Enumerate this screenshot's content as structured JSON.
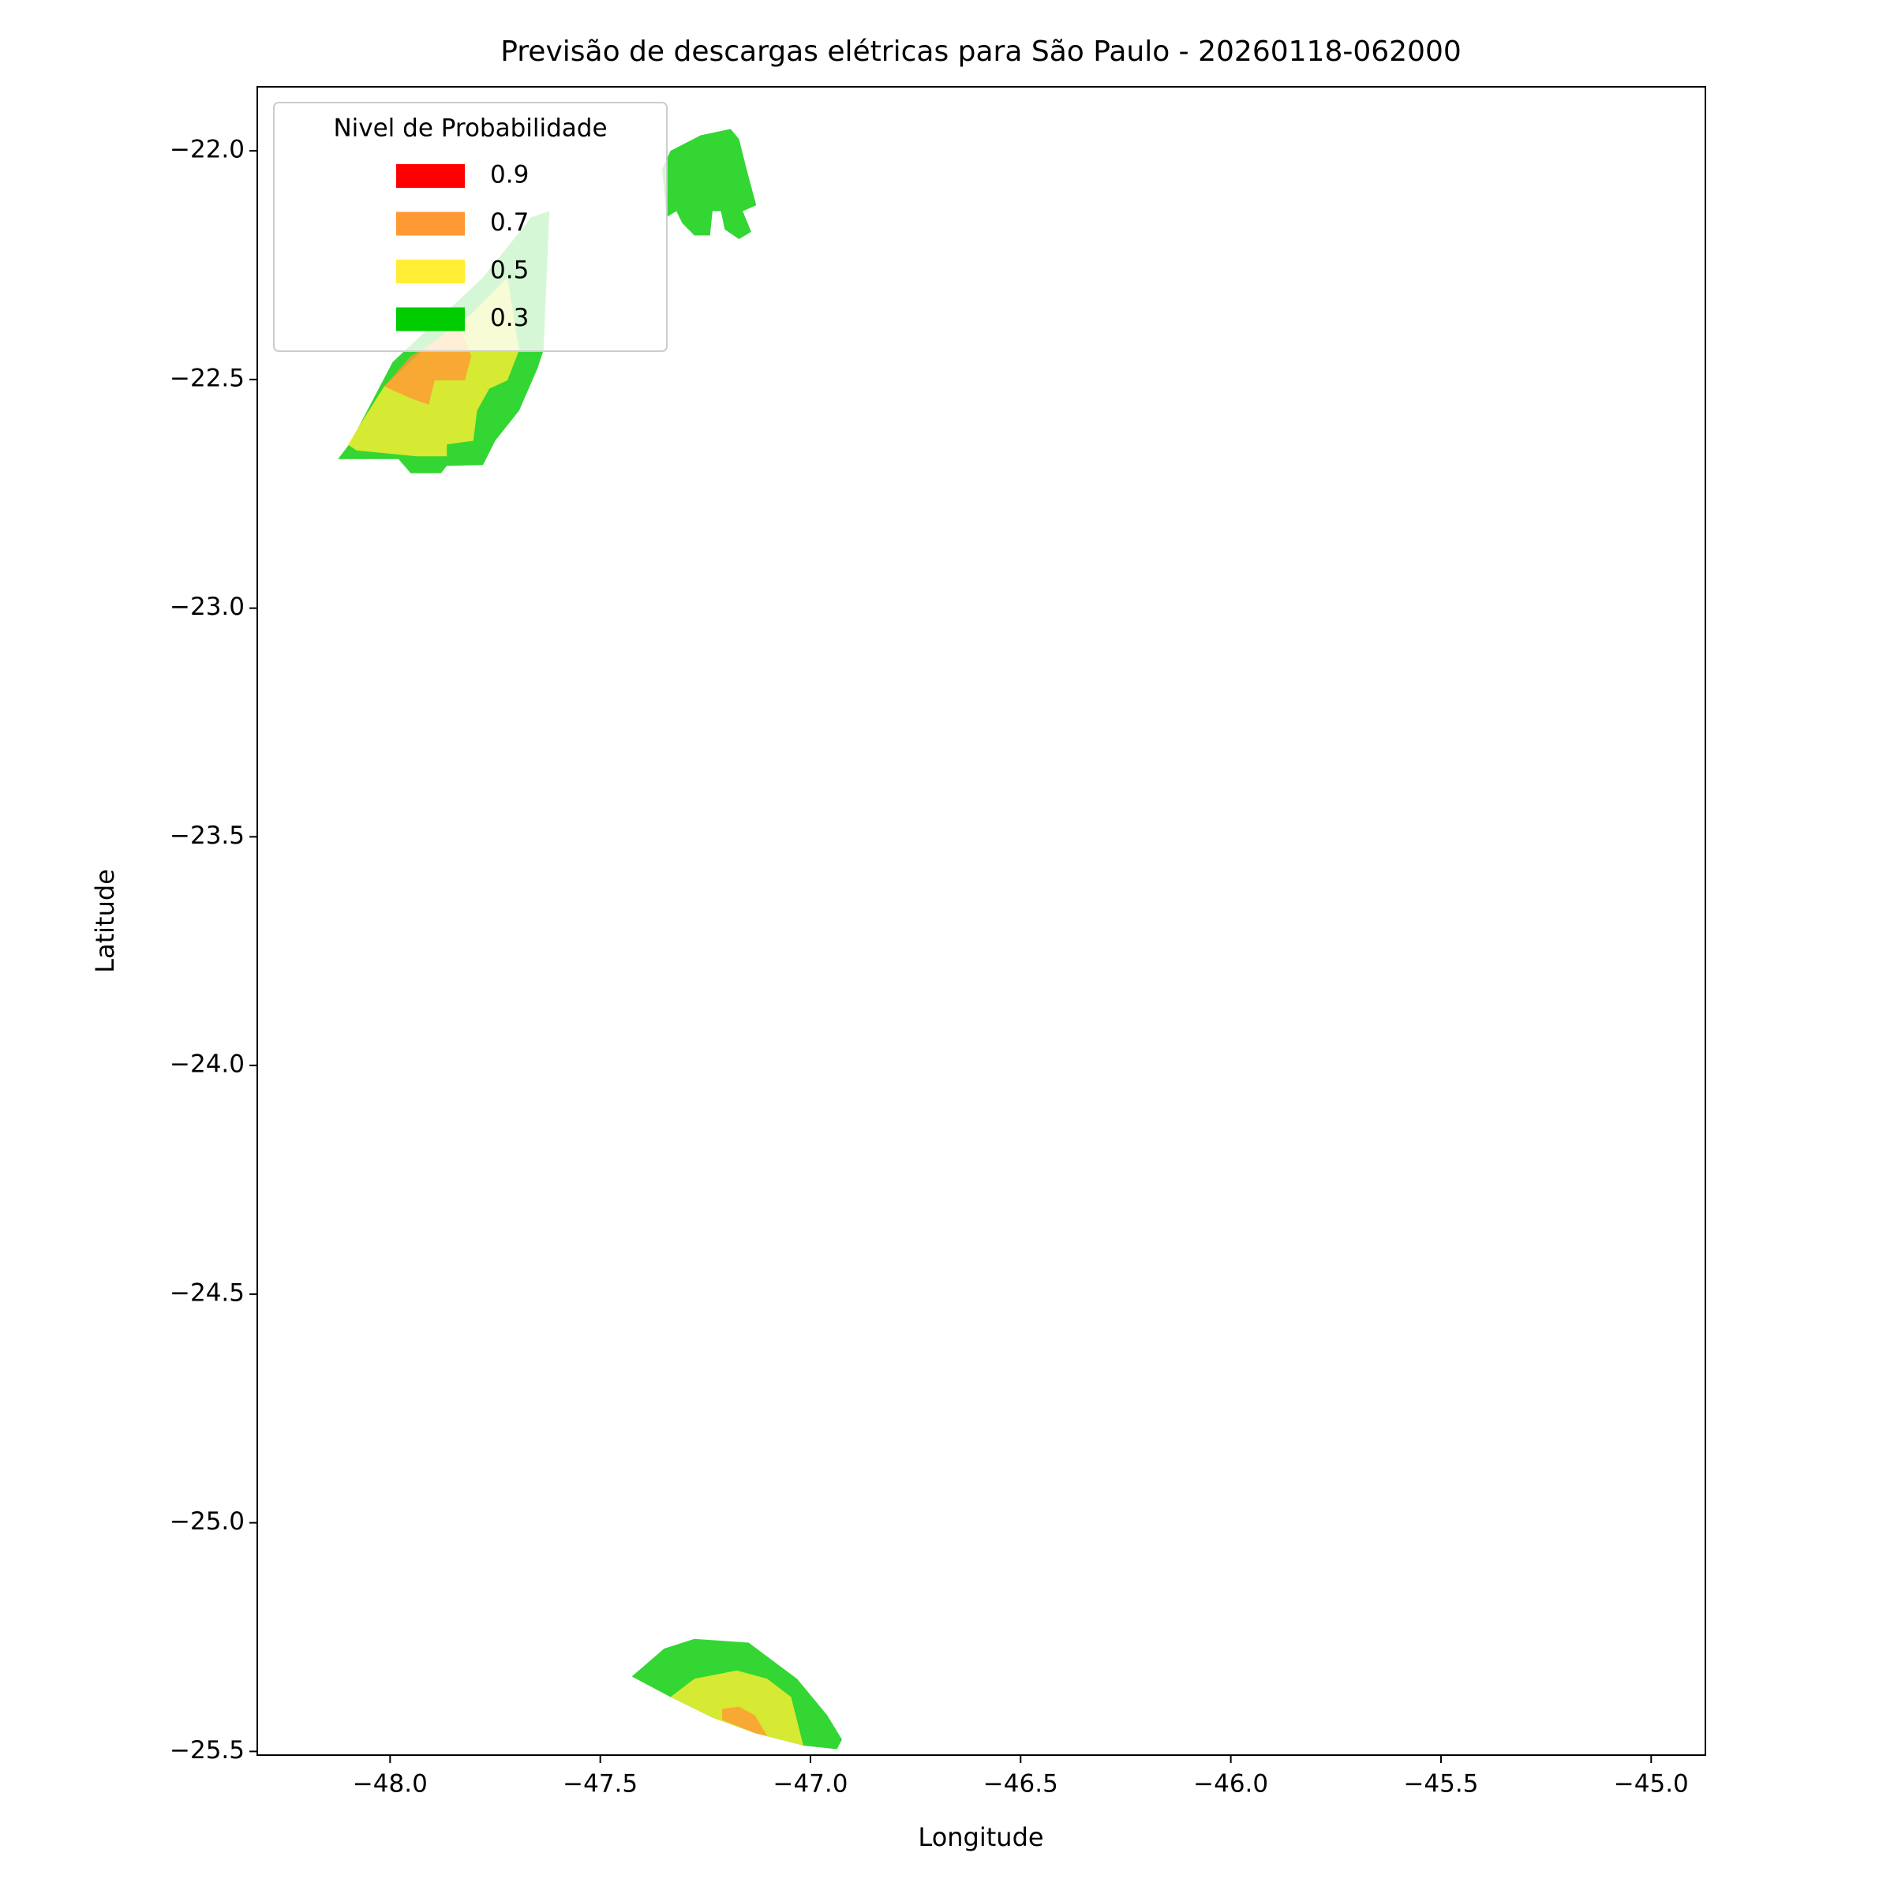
{
  "chart_data": {
    "type": "contour",
    "title": "Previsão de descargas elétricas para São Paulo - 20260118-062000",
    "x_label": "Longitude",
    "y_label": "Latitude",
    "xlim": [
      -48.316,
      -44.871
    ],
    "ylim": [
      -25.508,
      -21.86
    ],
    "xticks": [
      {
        "value": -48.0,
        "label": "−48.0"
      },
      {
        "value": -47.5,
        "label": "−47.5"
      },
      {
        "value": -47.0,
        "label": "−47.0"
      },
      {
        "value": -46.5,
        "label": "−46.5"
      },
      {
        "value": -46.0,
        "label": "−46.0"
      },
      {
        "value": -45.5,
        "label": "−45.5"
      },
      {
        "value": -45.0,
        "label": "−45.0"
      }
    ],
    "yticks": [
      {
        "value": -22.0,
        "label": "−22.0"
      },
      {
        "value": -22.5,
        "label": "−22.5"
      },
      {
        "value": -23.0,
        "label": "−23.0"
      },
      {
        "value": -23.5,
        "label": "−23.5"
      },
      {
        "value": -24.0,
        "label": "−24.0"
      },
      {
        "value": -24.5,
        "label": "−24.5"
      },
      {
        "value": -25.0,
        "label": "−25.0"
      },
      {
        "value": -25.5,
        "label": "−25.5"
      }
    ],
    "legend_title": "Nivel de Probabilidade",
    "legend_position": "upper left",
    "series": [
      {
        "name": "0.9",
        "color": "#ff0000",
        "polygons": []
      },
      {
        "name": "0.7",
        "color": "#ff9933",
        "polygons": [
          {
            "lon": [
              -48.014,
              -47.951,
              -47.836,
              -47.807,
              -47.822,
              -47.894,
              -47.908,
              -47.951
            ],
            "lat": [
              -22.515,
              -22.449,
              -22.383,
              -22.449,
              -22.502,
              -22.502,
              -22.555,
              -22.541
            ]
          },
          {
            "lon": [
              -47.21,
              -47.17,
              -47.132,
              -47.103,
              -47.132,
              -47.21
            ],
            "lat": [
              -25.407,
              -25.402,
              -25.421,
              -25.466,
              -25.46,
              -25.431
            ]
          }
        ]
      },
      {
        "name": "0.5",
        "color": "#ffee33",
        "polygons": [
          {
            "lon": [
              -48.101,
              -48.014,
              -47.922,
              -47.807,
              -47.721,
              -47.693,
              -47.721,
              -47.764,
              -47.793,
              -47.802,
              -47.865,
              -47.865,
              -47.937,
              -48.08
            ],
            "lat": [
              -22.642,
              -22.515,
              -22.436,
              -22.357,
              -22.277,
              -22.436,
              -22.502,
              -22.52,
              -22.568,
              -22.634,
              -22.642,
              -22.668,
              -22.668,
              -22.655
            ]
          },
          {
            "lon": [
              -47.333,
              -47.276,
              -47.175,
              -47.103,
              -47.046,
              -47.017,
              -47.132,
              -47.233
            ],
            "lat": [
              -25.381,
              -25.341,
              -25.323,
              -25.341,
              -25.381,
              -25.487,
              -25.46,
              -25.426
            ]
          }
        ]
      },
      {
        "name": "0.3",
        "color": "#00cc00",
        "polygons": [
          {
            "lon": [
              -48.124,
              -48.095,
              -47.994,
              -47.779,
              -47.664,
              -47.621,
              -47.635,
              -47.649,
              -47.693,
              -47.75,
              -47.779,
              -47.865,
              -47.879,
              -47.951,
              -47.98
            ],
            "lat": [
              -22.674,
              -22.639,
              -22.462,
              -22.277,
              -22.145,
              -22.132,
              -22.436,
              -22.475,
              -22.568,
              -22.634,
              -22.687,
              -22.689,
              -22.705,
              -22.705,
              -22.674
            ]
          },
          {
            "lon": [
              -47.353,
              -47.333,
              -47.261,
              -47.19,
              -47.17,
              -47.152,
              -47.129,
              -47.161,
              -47.141,
              -47.17,
              -47.204,
              -47.213,
              -47.233,
              -47.239,
              -47.276,
              -47.305,
              -47.319,
              -47.342
            ],
            "lat": [
              -22.04,
              -22.0,
              -21.966,
              -21.952,
              -21.974,
              -22.04,
              -22.119,
              -22.132,
              -22.177,
              -22.193,
              -22.172,
              -22.132,
              -22.132,
              -22.185,
              -22.185,
              -22.158,
              -22.132,
              -22.145
            ]
          },
          {
            "lon": [
              -47.425,
              -47.348,
              -47.276,
              -47.147,
              -47.089,
              -47.032,
              -46.96,
              -46.925,
              -46.937,
              -47.017,
              -47.132,
              -47.233,
              -47.333
            ],
            "lat": [
              -25.336,
              -25.275,
              -25.254,
              -25.262,
              -25.302,
              -25.341,
              -25.421,
              -25.474,
              -25.495,
              -25.487,
              -25.46,
              -25.426,
              -25.381
            ]
          }
        ]
      }
    ]
  }
}
